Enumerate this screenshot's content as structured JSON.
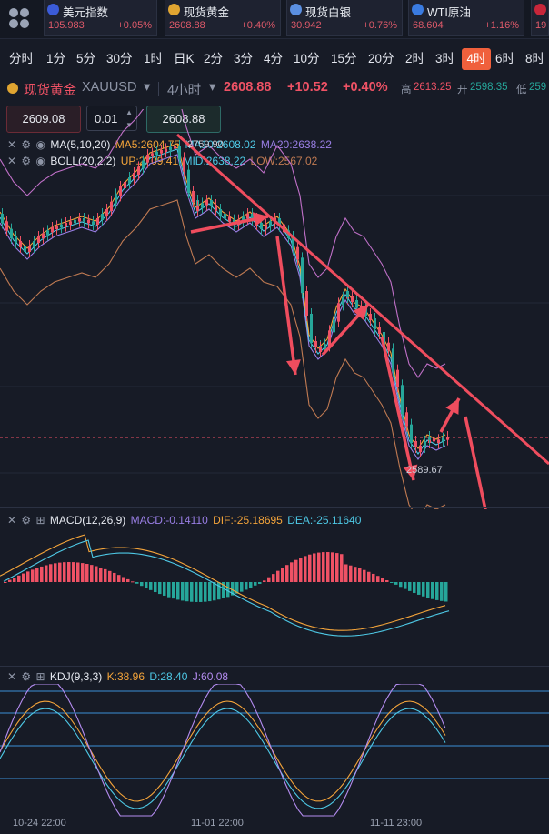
{
  "ticker": [
    {
      "name": "美元指数",
      "price": "105.983",
      "change": "+0.05%",
      "icon": "us-flag-icon",
      "icon_color": "#3b5bd8"
    },
    {
      "name": "现货黄金",
      "price": "2608.88",
      "change": "+0.40%",
      "icon": "gold-icon",
      "icon_color": "#e0a531"
    },
    {
      "name": "现货白银",
      "price": "30.942",
      "change": "+0.76%",
      "icon": "silver-icon",
      "icon_color": "#5b8fe0"
    },
    {
      "name": "WTI原油",
      "price": "68.604",
      "change": "+1.16%",
      "icon": "oil-icon",
      "icon_color": "#3a7be0"
    },
    {
      "name": "",
      "price": "19",
      "change": "",
      "icon": "uk-flag-icon",
      "icon_color": "#c8263a"
    }
  ],
  "periods": [
    "分时",
    "1分",
    "5分",
    "30分",
    "1时",
    "日K",
    "2分",
    "3分",
    "4分",
    "10分",
    "15分",
    "20分",
    "2时",
    "3时",
    "4时",
    "6时",
    "8时"
  ],
  "active_period": "4时",
  "symbol": {
    "name": "现货黄金",
    "code": "XAUUSD",
    "interval": "4小时",
    "price": "2608.88",
    "change": "+10.52",
    "change_pct": "+0.40%",
    "high_label": "高",
    "high": "2613.25",
    "open_label": "开",
    "open": "2598.35",
    "low_label": "低",
    "low": "259"
  },
  "order": {
    "sell_price": "2609.08",
    "lot": "0.01",
    "buy_price": "2608.88"
  },
  "indicators": {
    "ma": {
      "name": "MA(5,10,20)",
      "ma5": "MA5:2604.75",
      "ma10": "MA10:2608.02",
      "ma20": "MA20:2638.22"
    },
    "boll": {
      "name": "BOLL(20,2,2)",
      "up": "UP:2709.41",
      "mid": "MID:2638.22",
      "low": "LOW:2567.02"
    },
    "macd": {
      "name": "MACD(12,26,9)",
      "macd": "MACD:-0.14110",
      "dif": "DIF:-25.18695",
      "dea": "DEA:-25.11640"
    },
    "kdj": {
      "name": "KDJ(9,3,3)",
      "k": "K:38.96",
      "d": "D:28.40",
      "j": "J:60.08"
    }
  },
  "chart_labels": {
    "high_mark": "2759.90",
    "low_mark": "2589.67"
  },
  "time_axis": [
    "10-24 22:00",
    "11-01 22:00",
    "11-11 23:00"
  ],
  "colors": {
    "up": "#ef5265",
    "down": "#26a69a",
    "accent": "#f0603c",
    "ma5": "#f4a43a",
    "ma10": "#4ec9e6",
    "ma20": "#9a7fe6",
    "boll_band": "#c070c8",
    "boll_low": "#c07a52"
  }
}
